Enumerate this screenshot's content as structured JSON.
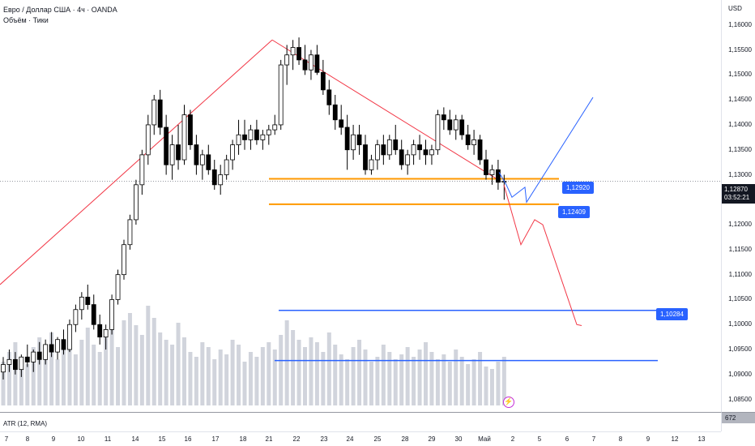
{
  "header": {
    "symbol_title": "Евро / Доллар США · 4ч · OANDA",
    "volume_label": "Объём · Тики"
  },
  "price_axis": {
    "currency": "USD",
    "ticks": [
      "1,16000",
      "1,15500",
      "1,15000",
      "1,14500",
      "1,14000",
      "1,13500",
      "1,13000",
      "1,12500",
      "1,12000",
      "1,11500",
      "1,11000",
      "1,10500",
      "1,10000",
      "1,09500",
      "1,09000",
      "1,08500"
    ],
    "current_price": "1,12870",
    "countdown": "03:52:21"
  },
  "annotations": {
    "level_1": "1,12920",
    "level_2": "1,12409",
    "level_3": "1,10284"
  },
  "atr": {
    "label": "ATR (12, RMA)",
    "value": "672"
  },
  "time_axis": {
    "labels": [
      "7",
      "8",
      "9",
      "10",
      "11",
      "14",
      "15",
      "16",
      "17",
      "18",
      "21",
      "22",
      "23",
      "24",
      "25",
      "28",
      "29",
      "30",
      "Май",
      "2",
      "5",
      "6",
      "7",
      "8",
      "9",
      "12",
      "13"
    ]
  },
  "colors": {
    "candle_up": "#ffffff",
    "candle_down": "#000000",
    "trend_line": "#f23645",
    "level_orange": "#ff9800",
    "level_blue": "#2962ff",
    "volume": "#d1d4dc"
  },
  "chart_data": {
    "type": "candlestick",
    "title": "Евро / Доллар США · 4ч · OANDA",
    "ylim": [
      1.0825,
      1.165
    ],
    "candles": [
      [
        1.0905,
        1.0935,
        1.089,
        1.092
      ],
      [
        1.092,
        1.095,
        1.0905,
        1.093
      ],
      [
        1.093,
        1.0945,
        1.09,
        1.091
      ],
      [
        1.091,
        1.094,
        1.0895,
        1.0935
      ],
      [
        1.0935,
        1.096,
        1.0915,
        1.0925
      ],
      [
        1.0925,
        1.095,
        1.0905,
        1.0945
      ],
      [
        1.0945,
        1.0965,
        1.092,
        1.093
      ],
      [
        1.093,
        1.097,
        1.092,
        1.096
      ],
      [
        1.096,
        1.0985,
        1.0935,
        1.0945
      ],
      [
        1.0945,
        1.0975,
        1.093,
        1.097
      ],
      [
        1.097,
        1.099,
        1.094,
        1.095
      ],
      [
        1.095,
        1.101,
        1.0945,
        1.1
      ],
      [
        1.1,
        1.104,
        1.0985,
        1.103
      ],
      [
        1.103,
        1.1065,
        1.101,
        1.1055
      ],
      [
        1.1055,
        1.108,
        1.103,
        1.104
      ],
      [
        1.104,
        1.106,
        1.099,
        1.1
      ],
      [
        1.1,
        1.102,
        1.096,
        1.0975
      ],
      [
        1.0975,
        1.1,
        1.095,
        1.099
      ],
      [
        1.099,
        1.106,
        1.098,
        1.105
      ],
      [
        1.105,
        1.111,
        1.104,
        1.11
      ],
      [
        1.11,
        1.117,
        1.109,
        1.116
      ],
      [
        1.116,
        1.122,
        1.115,
        1.121
      ],
      [
        1.121,
        1.129,
        1.12,
        1.128
      ],
      [
        1.128,
        1.135,
        1.126,
        1.134
      ],
      [
        1.134,
        1.142,
        1.132,
        1.14
      ],
      [
        1.14,
        1.146,
        1.138,
        1.145
      ],
      [
        1.145,
        1.147,
        1.138,
        1.1395
      ],
      [
        1.1395,
        1.142,
        1.13,
        1.132
      ],
      [
        1.132,
        1.138,
        1.129,
        1.136
      ],
      [
        1.136,
        1.14,
        1.131,
        1.133
      ],
      [
        1.133,
        1.144,
        1.132,
        1.142
      ],
      [
        1.142,
        1.143,
        1.135,
        1.136
      ],
      [
        1.136,
        1.138,
        1.13,
        1.132
      ],
      [
        1.132,
        1.135,
        1.129,
        1.134
      ],
      [
        1.134,
        1.136,
        1.13,
        1.131
      ],
      [
        1.131,
        1.133,
        1.127,
        1.128
      ],
      [
        1.128,
        1.132,
        1.126,
        1.13
      ],
      [
        1.13,
        1.134,
        1.129,
        1.133
      ],
      [
        1.133,
        1.137,
        1.131,
        1.136
      ],
      [
        1.136,
        1.141,
        1.134,
        1.138
      ],
      [
        1.138,
        1.141,
        1.135,
        1.137
      ],
      [
        1.137,
        1.14,
        1.135,
        1.139
      ],
      [
        1.139,
        1.141,
        1.136,
        1.137
      ],
      [
        1.137,
        1.139,
        1.135,
        1.138
      ],
      [
        1.138,
        1.14,
        1.136,
        1.139
      ],
      [
        1.139,
        1.142,
        1.138,
        1.14
      ],
      [
        1.14,
        1.153,
        1.139,
        1.152
      ],
      [
        1.152,
        1.156,
        1.148,
        1.154
      ],
      [
        1.154,
        1.157,
        1.151,
        1.1555
      ],
      [
        1.1555,
        1.1575,
        1.152,
        1.153
      ],
      [
        1.153,
        1.156,
        1.15,
        1.151
      ],
      [
        1.151,
        1.155,
        1.149,
        1.154
      ],
      [
        1.154,
        1.156,
        1.15,
        1.1505
      ],
      [
        1.1505,
        1.153,
        1.146,
        1.147
      ],
      [
        1.147,
        1.149,
        1.142,
        1.144
      ],
      [
        1.144,
        1.146,
        1.139,
        1.141
      ],
      [
        1.141,
        1.144,
        1.138,
        1.1395
      ],
      [
        1.1395,
        1.142,
        1.131,
        1.135
      ],
      [
        1.135,
        1.14,
        1.133,
        1.138
      ],
      [
        1.138,
        1.14,
        1.134,
        1.136
      ],
      [
        1.136,
        1.138,
        1.13,
        1.131
      ],
      [
        1.131,
        1.134,
        1.13,
        1.133
      ],
      [
        1.133,
        1.137,
        1.131,
        1.136
      ],
      [
        1.136,
        1.138,
        1.132,
        1.134
      ],
      [
        1.134,
        1.138,
        1.133,
        1.137
      ],
      [
        1.137,
        1.14,
        1.134,
        1.135
      ],
      [
        1.135,
        1.137,
        1.131,
        1.132
      ],
      [
        1.132,
        1.135,
        1.13,
        1.134
      ],
      [
        1.134,
        1.137,
        1.132,
        1.136
      ],
      [
        1.136,
        1.138,
        1.133,
        1.135
      ],
      [
        1.135,
        1.137,
        1.132,
        1.134
      ],
      [
        1.134,
        1.136,
        1.132,
        1.135
      ],
      [
        1.135,
        1.143,
        1.134,
        1.142
      ],
      [
        1.142,
        1.1435,
        1.139,
        1.141
      ],
      [
        1.141,
        1.143,
        1.138,
        1.139
      ],
      [
        1.139,
        1.142,
        1.137,
        1.141
      ],
      [
        1.141,
        1.142,
        1.137,
        1.138
      ],
      [
        1.138,
        1.14,
        1.135,
        1.136
      ],
      [
        1.136,
        1.139,
        1.134,
        1.137
      ],
      [
        1.137,
        1.138,
        1.132,
        1.133
      ],
      [
        1.133,
        1.135,
        1.129,
        1.13
      ],
      [
        1.13,
        1.132,
        1.128,
        1.131
      ],
      [
        1.131,
        1.133,
        1.127,
        1.1285
      ],
      [
        1.1285,
        1.13,
        1.125,
        1.1287
      ]
    ],
    "volumes": [
      18,
      22,
      26,
      20,
      17,
      24,
      28,
      22,
      30,
      19,
      23,
      26,
      21,
      27,
      32,
      25,
      22,
      28,
      31,
      24,
      35,
      38,
      33,
      29,
      41,
      36,
      30,
      27,
      25,
      34,
      28,
      22,
      20,
      26,
      24,
      19,
      23,
      21,
      27,
      25,
      18,
      22,
      20,
      24,
      26,
      23,
      29,
      35,
      31,
      27,
      24,
      28,
      26,
      22,
      30,
      25,
      21,
      19,
      24,
      27,
      23,
      18,
      20,
      25,
      22,
      19,
      21,
      24,
      20,
      23,
      26,
      22,
      19,
      21,
      18,
      23,
      20,
      17,
      19,
      22,
      16,
      15,
      18,
      20
    ]
  }
}
